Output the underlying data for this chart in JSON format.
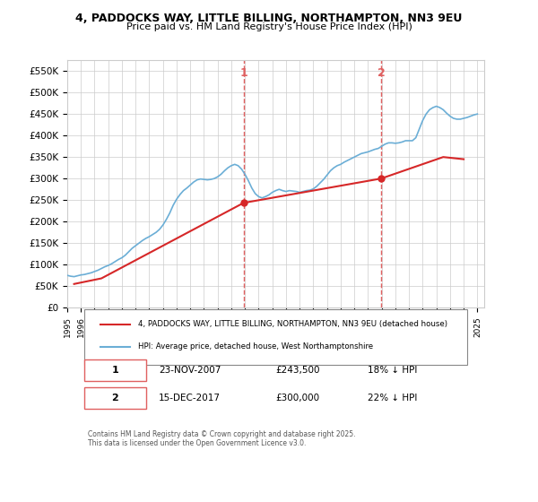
{
  "title1": "4, PADDOCKS WAY, LITTLE BILLING, NORTHAMPTON, NN3 9EU",
  "title2": "Price paid vs. HM Land Registry's House Price Index (HPI)",
  "legend1": "4, PADDOCKS WAY, LITTLE BILLING, NORTHAMPTON, NN3 9EU (detached house)",
  "legend2": "HPI: Average price, detached house, West Northamptonshire",
  "purchase1_label": "1",
  "purchase1_date": "23-NOV-2007",
  "purchase1_price": 243500,
  "purchase1_hpi_diff": "18% ↓ HPI",
  "purchase2_label": "2",
  "purchase2_date": "15-DEC-2017",
  "purchase2_price": 300000,
  "purchase2_hpi_diff": "22% ↓ HPI",
  "footer": "Contains HM Land Registry data © Crown copyright and database right 2025.\nThis data is licensed under the Open Government Licence v3.0.",
  "bg_color": "#ffffff",
  "hpi_color": "#6baed6",
  "price_color": "#d62728",
  "vline_color": "#e06060",
  "grid_color": "#cccccc",
  "purchase1_year": 2007.9,
  "purchase2_year": 2017.96,
  "ylim": [
    0,
    575000
  ],
  "xlim_start": 1995,
  "xlim_end": 2025.5,
  "hpi_data": {
    "years": [
      1995.0,
      1995.25,
      1995.5,
      1995.75,
      1996.0,
      1996.25,
      1996.5,
      1996.75,
      1997.0,
      1997.25,
      1997.5,
      1997.75,
      1998.0,
      1998.25,
      1998.5,
      1998.75,
      1999.0,
      1999.25,
      1999.5,
      1999.75,
      2000.0,
      2000.25,
      2000.5,
      2000.75,
      2001.0,
      2001.25,
      2001.5,
      2001.75,
      2002.0,
      2002.25,
      2002.5,
      2002.75,
      2003.0,
      2003.25,
      2003.5,
      2003.75,
      2004.0,
      2004.25,
      2004.5,
      2004.75,
      2005.0,
      2005.25,
      2005.5,
      2005.75,
      2006.0,
      2006.25,
      2006.5,
      2006.75,
      2007.0,
      2007.25,
      2007.5,
      2007.75,
      2008.0,
      2008.25,
      2008.5,
      2008.75,
      2009.0,
      2009.25,
      2009.5,
      2009.75,
      2010.0,
      2010.25,
      2010.5,
      2010.75,
      2011.0,
      2011.25,
      2011.5,
      2011.75,
      2012.0,
      2012.25,
      2012.5,
      2012.75,
      2013.0,
      2013.25,
      2013.5,
      2013.75,
      2014.0,
      2014.25,
      2014.5,
      2014.75,
      2015.0,
      2015.25,
      2015.5,
      2015.75,
      2016.0,
      2016.25,
      2016.5,
      2016.75,
      2017.0,
      2017.25,
      2017.5,
      2017.75,
      2018.0,
      2018.25,
      2018.5,
      2018.75,
      2019.0,
      2019.25,
      2019.5,
      2019.75,
      2020.0,
      2020.25,
      2020.5,
      2020.75,
      2021.0,
      2021.25,
      2021.5,
      2021.75,
      2022.0,
      2022.25,
      2022.5,
      2022.75,
      2023.0,
      2023.25,
      2023.5,
      2023.75,
      2024.0,
      2024.25,
      2024.5,
      2024.75,
      2025.0
    ],
    "values": [
      75000,
      73000,
      72000,
      74000,
      76000,
      77000,
      79000,
      81000,
      84000,
      87000,
      91000,
      95000,
      98000,
      102000,
      107000,
      112000,
      116000,
      122000,
      130000,
      138000,
      144000,
      150000,
      156000,
      161000,
      165000,
      170000,
      175000,
      182000,
      192000,
      205000,
      220000,
      238000,
      252000,
      263000,
      272000,
      278000,
      285000,
      292000,
      297000,
      299000,
      298000,
      297000,
      298000,
      300000,
      304000,
      310000,
      318000,
      325000,
      330000,
      333000,
      330000,
      322000,
      310000,
      295000,
      278000,
      265000,
      258000,
      255000,
      258000,
      262000,
      268000,
      272000,
      275000,
      272000,
      270000,
      272000,
      271000,
      270000,
      268000,
      270000,
      272000,
      273000,
      276000,
      282000,
      290000,
      298000,
      308000,
      318000,
      325000,
      330000,
      333000,
      338000,
      342000,
      346000,
      350000,
      354000,
      358000,
      360000,
      362000,
      365000,
      368000,
      370000,
      375000,
      380000,
      383000,
      383000,
      382000,
      383000,
      385000,
      388000,
      388000,
      388000,
      395000,
      415000,
      435000,
      450000,
      460000,
      465000,
      468000,
      465000,
      460000,
      452000,
      445000,
      440000,
      438000,
      438000,
      440000,
      442000,
      445000,
      448000,
      450000
    ]
  },
  "price_data": {
    "years": [
      1995.5,
      1997.5,
      2007.9,
      2017.96,
      2022.5,
      2024.0
    ],
    "values": [
      55000,
      68000,
      243500,
      300000,
      350000,
      345000
    ]
  }
}
